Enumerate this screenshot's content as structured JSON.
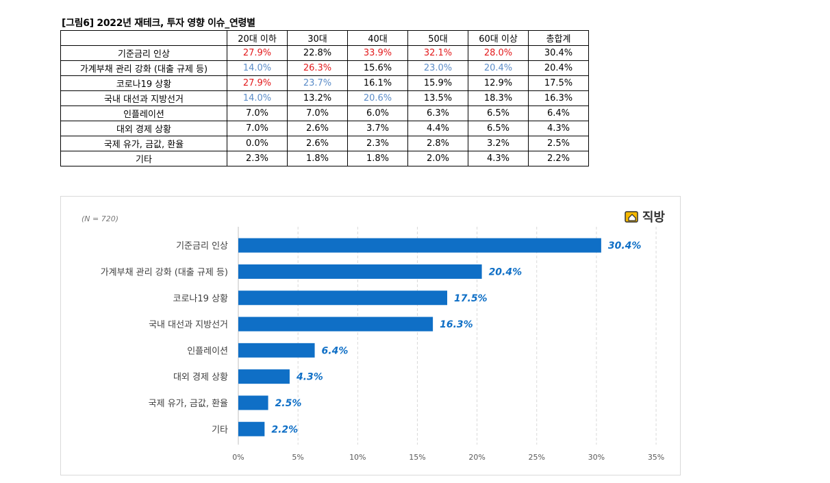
{
  "figure_title": "[그림6] 2022년 재테크, 투자 영향 이슈_연령별",
  "table": {
    "headers": [
      "",
      "20대 이하",
      "30대",
      "40대",
      "50대",
      "60대 이상",
      "총합계"
    ],
    "rows": [
      {
        "label": "기준금리 인상",
        "cells": [
          {
            "v": "27.9%",
            "c": "red"
          },
          {
            "v": "22.8%",
            "c": ""
          },
          {
            "v": "33.9%",
            "c": "red"
          },
          {
            "v": "32.1%",
            "c": "red"
          },
          {
            "v": "28.0%",
            "c": "red"
          },
          {
            "v": "30.4%",
            "c": ""
          }
        ]
      },
      {
        "label": "가계부채 관리 강화 (대출 규제 등)",
        "cells": [
          {
            "v": "14.0%",
            "c": "blue"
          },
          {
            "v": "26.3%",
            "c": "red"
          },
          {
            "v": "15.6%",
            "c": ""
          },
          {
            "v": "23.0%",
            "c": "blue"
          },
          {
            "v": "20.4%",
            "c": "blue"
          },
          {
            "v": "20.4%",
            "c": ""
          }
        ]
      },
      {
        "label": "코로나19 상황",
        "cells": [
          {
            "v": "27.9%",
            "c": "red"
          },
          {
            "v": "23.7%",
            "c": "blue"
          },
          {
            "v": "16.1%",
            "c": ""
          },
          {
            "v": "15.9%",
            "c": ""
          },
          {
            "v": "12.9%",
            "c": ""
          },
          {
            "v": "17.5%",
            "c": ""
          }
        ]
      },
      {
        "label": "국내 대선과 지방선거",
        "cells": [
          {
            "v": "14.0%",
            "c": "blue"
          },
          {
            "v": "13.2%",
            "c": ""
          },
          {
            "v": "20.6%",
            "c": "blue"
          },
          {
            "v": "13.5%",
            "c": ""
          },
          {
            "v": "18.3%",
            "c": ""
          },
          {
            "v": "16.3%",
            "c": ""
          }
        ]
      },
      {
        "label": "인플레이션",
        "cells": [
          {
            "v": "7.0%",
            "c": ""
          },
          {
            "v": "7.0%",
            "c": ""
          },
          {
            "v": "6.0%",
            "c": ""
          },
          {
            "v": "6.3%",
            "c": ""
          },
          {
            "v": "6.5%",
            "c": ""
          },
          {
            "v": "6.4%",
            "c": ""
          }
        ]
      },
      {
        "label": "대외 경제 상황",
        "cells": [
          {
            "v": "7.0%",
            "c": ""
          },
          {
            "v": "2.6%",
            "c": ""
          },
          {
            "v": "3.7%",
            "c": ""
          },
          {
            "v": "4.4%",
            "c": ""
          },
          {
            "v": "6.5%",
            "c": ""
          },
          {
            "v": "4.3%",
            "c": ""
          }
        ]
      },
      {
        "label": "국제 유가, 금값, 환율",
        "cells": [
          {
            "v": "0.0%",
            "c": ""
          },
          {
            "v": "2.6%",
            "c": ""
          },
          {
            "v": "2.3%",
            "c": ""
          },
          {
            "v": "2.8%",
            "c": ""
          },
          {
            "v": "3.2%",
            "c": ""
          },
          {
            "v": "2.5%",
            "c": ""
          }
        ]
      },
      {
        "label": "기타",
        "cells": [
          {
            "v": "2.3%",
            "c": ""
          },
          {
            "v": "1.8%",
            "c": ""
          },
          {
            "v": "1.8%",
            "c": ""
          },
          {
            "v": "2.0%",
            "c": ""
          },
          {
            "v": "4.3%",
            "c": ""
          },
          {
            "v": "2.2%",
            "c": ""
          }
        ]
      }
    ]
  },
  "colors": {
    "red": "#e31a1c",
    "blue": "#5b8cc8",
    "bar": "#0f6fc6",
    "label": "#0f6fc6",
    "grid": "#d9d9d9"
  },
  "brand": {
    "name": "직방",
    "icon": "house-icon"
  },
  "chart_data": {
    "type": "bar",
    "orientation": "horizontal",
    "note": "(N = 720)",
    "categories": [
      "기준금리 인상",
      "가계부채 관리 강화 (대출 규제 등)",
      "코로나19 상황",
      "국내 대선과 지방선거",
      "인플레이션",
      "대외 경제 상황",
      "국제 유가, 금값, 환율",
      "기타"
    ],
    "values": [
      30.4,
      20.4,
      17.5,
      16.3,
      6.4,
      4.3,
      2.5,
      2.2
    ],
    "data_labels": [
      "30.4%",
      "20.4%",
      "17.5%",
      "16.3%",
      "6.4%",
      "4.3%",
      "2.5%",
      "2.2%"
    ],
    "xlim": [
      0,
      35
    ],
    "xticks": [
      0,
      5,
      10,
      15,
      20,
      25,
      30,
      35
    ],
    "xtick_labels": [
      "0%",
      "5%",
      "10%",
      "15%",
      "20%",
      "25%",
      "30%",
      "35%"
    ],
    "grid": "vertical dashed"
  }
}
